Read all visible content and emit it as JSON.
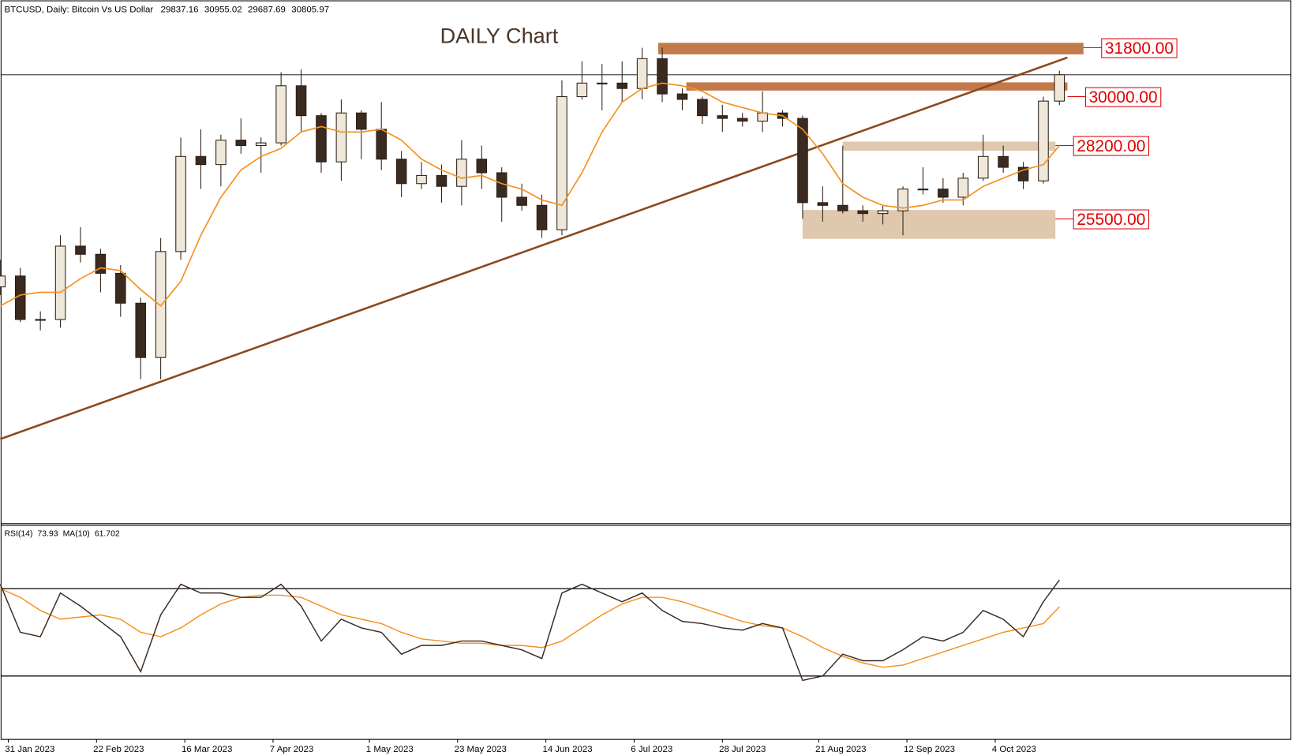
{
  "chart_data": [
    {
      "type": "candlestick",
      "title": "DAILY Chart",
      "subtitle": "BTCUSD, Daily:  Bitcoin Vs US Dollar",
      "x": [
        "29 Jan 2023",
        "3 Feb 2023",
        "8 Feb 2023",
        "13 Feb 2023",
        "18 Feb 2023",
        "23 Feb 2023",
        "28 Feb 2023",
        "5 Mar 2023",
        "10 Mar 2023",
        "15 Mar 2023",
        "20 Mar 2023",
        "25 Mar 2023",
        "30 Mar 2023",
        "4 Apr 2023",
        "9 Apr 2023",
        "14 Apr 2023",
        "19 Apr 2023",
        "24 Apr 2023",
        "29 Apr 2023",
        "4 May 2023",
        "9 May 2023",
        "14 May 2023",
        "19 May 2023",
        "24 May 2023",
        "29 May 2023",
        "3 Jun 2023",
        "8 Jun 2023",
        "13 Jun 2023",
        "18 Jun 2023",
        "23 Jun 2023",
        "28 Jun 2023",
        "3 Jul 2023",
        "8 Jul 2023",
        "13 Jul 2023",
        "18 Jul 2023",
        "23 Jul 2023",
        "28 Jul 2023",
        "2 Aug 2023",
        "7 Aug 2023",
        "12 Aug 2023",
        "17 Aug 2023",
        "22 Aug 2023",
        "27 Aug 2023",
        "1 Sep 2023",
        "6 Sep 2023",
        "11 Sep 2023",
        "16 Sep 2023",
        "21 Sep 2023",
        "26 Sep 2023",
        "1 Oct 2023",
        "6 Oct 2023",
        "11 Oct 2023",
        "16 Oct 2023",
        "20 Oct 2023"
      ],
      "open": [
        23000,
        23400,
        21800,
        21800,
        24500,
        24200,
        23500,
        22400,
        20400,
        24300,
        27800,
        27500,
        28400,
        28200,
        28300,
        30400,
        29300,
        27600,
        29400,
        28800,
        27700,
        26800,
        27100,
        26700,
        27700,
        27200,
        26300,
        26000,
        25100,
        30000,
        30500,
        30500,
        30300,
        31400,
        30100,
        29900,
        29300,
        29200,
        29100,
        29400,
        29200,
        26100,
        26000,
        25800,
        25700,
        25800,
        26600,
        26600,
        26300,
        27000,
        27800,
        27400,
        26900,
        29837.16
      ],
      "high": [
        24000,
        23700,
        22100,
        24900,
        25200,
        24400,
        23800,
        22600,
        24800,
        28500,
        28800,
        28600,
        29200,
        28500,
        30900,
        31000,
        29400,
        29900,
        29500,
        29800,
        28000,
        27600,
        27500,
        28400,
        28200,
        27400,
        26800,
        26400,
        30600,
        31300,
        31200,
        31300,
        31800,
        31800,
        30300,
        30000,
        29700,
        29400,
        30200,
        29500,
        29300,
        26700,
        28200,
        26000,
        26000,
        26700,
        27400,
        27000,
        27200,
        28600,
        28200,
        27600,
        30000,
        30955.02
      ],
      "low": [
        22700,
        21700,
        21400,
        21500,
        23900,
        22800,
        21900,
        19600,
        19600,
        24000,
        26600,
        26700,
        27900,
        27200,
        28200,
        28700,
        27200,
        26900,
        27700,
        27300,
        26300,
        26600,
        26100,
        26000,
        26600,
        25400,
        25800,
        24800,
        24900,
        29900,
        29500,
        29800,
        29900,
        29800,
        29500,
        29000,
        28700,
        28900,
        28700,
        28900,
        25500,
        25400,
        25700,
        25400,
        25300,
        24900,
        26400,
        26100,
        26000,
        26900,
        27200,
        26600,
        26800,
        29687.69
      ],
      "close": [
        23400,
        21800,
        21800,
        24500,
        24200,
        23500,
        22400,
        20400,
        24300,
        27800,
        27500,
        28400,
        28200,
        28300,
        30400,
        29300,
        27600,
        29400,
        28800,
        27700,
        26800,
        27100,
        26700,
        27700,
        27200,
        26300,
        26000,
        25100,
        30000,
        30500,
        30500,
        30300,
        31400,
        30100,
        29900,
        29300,
        29200,
        29100,
        29400,
        29200,
        26100,
        26000,
        25800,
        25700,
        25800,
        26600,
        26600,
        26300,
        27000,
        27800,
        27400,
        26900,
        29837.16,
        30805.97
      ],
      "up_color": "#efe7da",
      "down_color": "#3b2a1f",
      "edge_color": "#2b1d14",
      "ma": {
        "color": "#f5901e",
        "values": [
          22300,
          22700,
          22800,
          22800,
          23300,
          23700,
          23600,
          22900,
          22300,
          23200,
          24900,
          26300,
          27300,
          27800,
          28100,
          28700,
          28900,
          28700,
          28700,
          28800,
          28400,
          27700,
          27300,
          27000,
          27100,
          26800,
          26600,
          26200,
          26000,
          27200,
          28700,
          29800,
          30300,
          30500,
          30400,
          30200,
          29800,
          29600,
          29400,
          29300,
          28800,
          27900,
          26800,
          26300,
          26000,
          25900,
          26000,
          26200,
          26200,
          26700,
          27000,
          27300,
          27500,
          28200
        ]
      },
      "xlim": [
        "29 Jan 2023",
        "27 Oct 2023"
      ],
      "ylim": [
        14317,
        33497
      ],
      "xticks": [
        "31 Jan 2023",
        "22 Feb 2023",
        "16 Mar 2023",
        "7 Apr 2023",
        "1 May 2023",
        "23 May 2023",
        "14 Jun 2023",
        "6 Jul 2023",
        "28 Jul 2023",
        "21 Aug 2023",
        "12 Sep 2023",
        "4 Oct 2023"
      ],
      "trendline": {
        "color": "#8b4a1f",
        "x": [
          "29 Jan 2023",
          "22 Oct 2023"
        ],
        "y": [
          17400,
          31440
        ]
      },
      "zones": [
        {
          "level": {
            "value": 31800,
            "label": "31800.00"
          },
          "range": [
            31558,
            31982
          ],
          "start": "12 Jul 2023",
          "end": "26 Oct 2023",
          "color": "#c27a4b"
        },
        {
          "level": {
            "value": 30000,
            "label": "30000.00"
          },
          "range": [
            30224,
            30527
          ],
          "start": "19 Jul 2023",
          "end": "22 Oct 2023",
          "color": "#c27a4b"
        },
        {
          "level": {
            "value": 28200,
            "label": "28200.00"
          },
          "range": [
            28012,
            28346
          ],
          "start": "27 Aug 2023",
          "end": "19 Oct 2023",
          "color": "#dfc8ad"
        },
        {
          "level": {
            "value": 25500,
            "label": "25500.00"
          },
          "range": [
            24770,
            25831
          ],
          "start": "17 Aug 2023",
          "end": "19 Oct 2023",
          "color": "#dfc8ad"
        }
      ],
      "label_color": "#e00000"
    },
    {
      "type": "line",
      "ylim": [
        1,
        99
      ],
      "levels": [
        70,
        30
      ],
      "series": [
        {
          "name": "RSI(14)",
          "color": "#3b2a1e",
          "values": [
            72,
            50,
            48,
            68,
            62,
            55,
            48,
            32,
            58,
            72,
            68,
            68,
            66,
            66,
            72,
            62,
            46,
            56,
            52,
            50,
            40,
            44,
            44,
            46,
            46,
            44,
            42,
            38,
            68,
            72,
            68,
            64,
            68,
            60,
            55,
            54,
            52,
            51,
            54,
            52,
            28,
            30,
            40,
            37,
            37,
            42,
            48,
            46,
            50,
            60,
            56,
            48,
            64,
            73.93
          ]
        },
        {
          "name": "MA(10)",
          "color": "#f5901e",
          "values": [
            70,
            66,
            60,
            56,
            57,
            58,
            56,
            50,
            48,
            52,
            58,
            63,
            66,
            67,
            67,
            66,
            62,
            58,
            56,
            54,
            50,
            47,
            46,
            45,
            45,
            44,
            44,
            43,
            46,
            52,
            58,
            63,
            66,
            66,
            64,
            61,
            58,
            55,
            53,
            52,
            48,
            43,
            39,
            36,
            34,
            35,
            38,
            41,
            44,
            47,
            50,
            52,
            54,
            61.702
          ]
        }
      ]
    }
  ]
}
